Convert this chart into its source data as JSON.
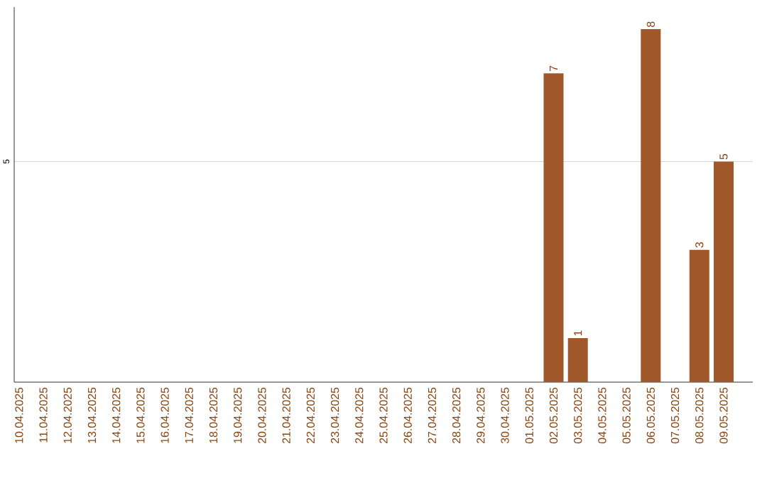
{
  "chart_data": {
    "type": "bar",
    "categories": [
      "10.04.2025",
      "11.04.2025",
      "12.04.2025",
      "13.04.2025",
      "14.04.2025",
      "15.04.2025",
      "16.04.2025",
      "17.04.2025",
      "18.04.2025",
      "19.04.2025",
      "20.04.2025",
      "21.04.2025",
      "22.04.2025",
      "23.04.2025",
      "24.04.2025",
      "25.04.2025",
      "26.04.2025",
      "27.04.2025",
      "28.04.2025",
      "29.04.2025",
      "30.04.2025",
      "01.05.2025",
      "02.05.2025",
      "03.05.2025",
      "04.05.2025",
      "05.05.2025",
      "06.05.2025",
      "07.05.2025",
      "08.05.2025",
      "09.05.2025"
    ],
    "values": [
      null,
      null,
      null,
      null,
      null,
      null,
      null,
      null,
      null,
      null,
      null,
      null,
      null,
      null,
      null,
      null,
      null,
      null,
      null,
      null,
      null,
      null,
      7,
      1,
      null,
      null,
      8,
      null,
      3,
      5
    ],
    "color": "#a0572a",
    "ylim": [
      0,
      8.5
    ],
    "yticks": [
      5
    ],
    "grid": "y",
    "data_labels": true
  }
}
